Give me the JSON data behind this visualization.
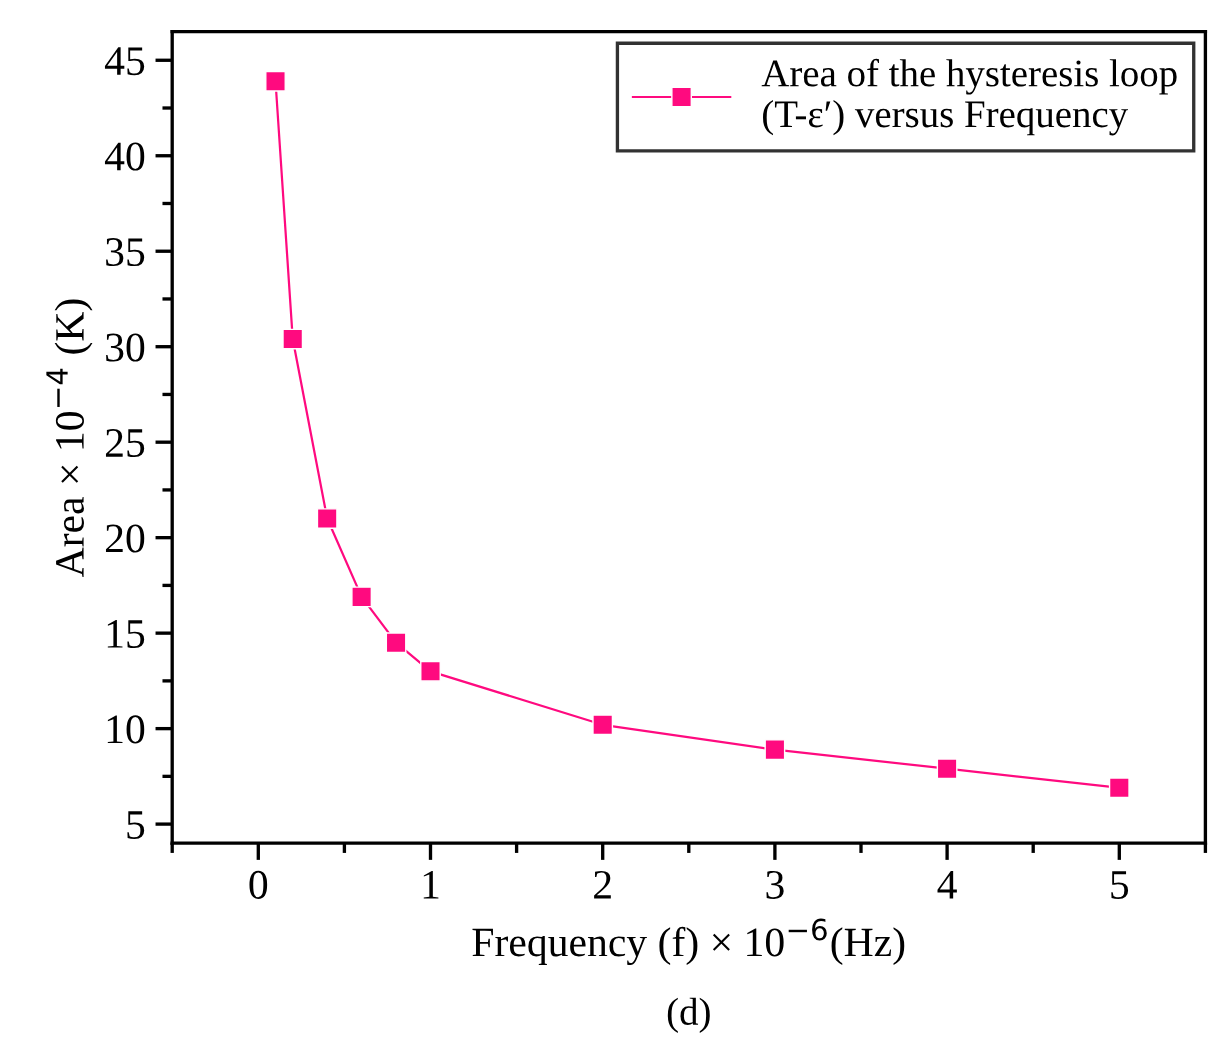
{
  "chart_data": {
    "type": "line",
    "xlabel": "Frequency (f) × 10$^{−6}$(Hz)",
    "ylabel": "Area × 10$^{−4}$ (K)",
    "annotations": [
      "(d)"
    ],
    "series": [
      {
        "name": "Area of the hysteresis loop\n(T-ε′) versus Frequency",
        "color": "#ff0a7f",
        "x": [
          0.1,
          0.2,
          0.4,
          0.6,
          0.8,
          1,
          2,
          3,
          4,
          5
        ],
        "values": [
          43.9,
          30.4,
          21.0,
          16.9,
          14.5,
          13.0,
          10.2,
          8.9,
          7.9,
          6.9
        ]
      }
    ],
    "xlim": [
      -0.5,
      5.5
    ],
    "ylim": [
      4,
      46.5
    ],
    "xticks": [
      {
        "value": -0.5,
        "label": null
      },
      0,
      {
        "value": 0.5,
        "label": null
      },
      1,
      {
        "value": 1.5,
        "label": null
      },
      2,
      {
        "value": 2.5,
        "label": null
      },
      3,
      {
        "value": 3.5,
        "label": null
      },
      4,
      {
        "value": 4.5,
        "label": null
      },
      5,
      {
        "value": 5.5,
        "label": null
      }
    ],
    "yticks": [
      5,
      {
        "value": 7.5,
        "label": null
      },
      10,
      {
        "value": 12.5,
        "label": null
      },
      15,
      {
        "value": 17.5,
        "label": null
      },
      20,
      {
        "value": 22.5,
        "label": null
      },
      25,
      {
        "value": 27.5,
        "label": null
      },
      30,
      {
        "value": 32.5,
        "label": null
      },
      35,
      {
        "value": 37.5,
        "label": null
      },
      40,
      {
        "value": 42.5,
        "label": null
      },
      45
    ],
    "marker": "square",
    "line_style": "solid",
    "legend": "top right",
    "grid": false
  }
}
